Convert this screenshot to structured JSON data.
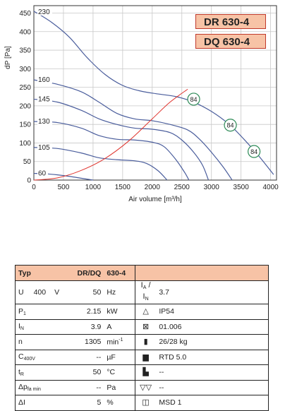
{
  "chart_data": {
    "type": "line",
    "xlabel": "Air volume [m³/h]",
    "ylabel": "dP [Pa]",
    "xlim": [
      0,
      4100
    ],
    "ylim": [
      0,
      470
    ],
    "xticks": [
      "0",
      "500",
      "1000",
      "1500",
      "2000",
      "2500",
      "3000",
      "3500",
      "4000"
    ],
    "yticks": [
      "0",
      "50",
      "100",
      "150",
      "200",
      "250",
      "300",
      "350",
      "400",
      "450"
    ],
    "series": [
      {
        "name": "230",
        "color": "#4a5d9c",
        "points": [
          [
            0,
            455
          ],
          [
            300,
            425
          ],
          [
            600,
            385
          ],
          [
            900,
            330
          ],
          [
            1200,
            285
          ],
          [
            1500,
            255
          ],
          [
            1800,
            240
          ],
          [
            2100,
            232
          ],
          [
            2400,
            225
          ],
          [
            2700,
            210
          ],
          [
            3000,
            185
          ],
          [
            3300,
            150
          ],
          [
            3550,
            110
          ],
          [
            3800,
            65
          ],
          [
            4050,
            15
          ]
        ]
      },
      {
        "name": "160",
        "color": "#4a5d9c",
        "points": [
          [
            0,
            270
          ],
          [
            400,
            258
          ],
          [
            800,
            238
          ],
          [
            1100,
            210
          ],
          [
            1400,
            180
          ],
          [
            1700,
            165
          ],
          [
            2000,
            160
          ],
          [
            2300,
            150
          ],
          [
            2600,
            135
          ],
          [
            2800,
            110
          ],
          [
            3000,
            75
          ],
          [
            3200,
            35
          ],
          [
            3350,
            0
          ]
        ]
      },
      {
        "name": "145",
        "color": "#4a5d9c",
        "points": [
          [
            0,
            218
          ],
          [
            400,
            210
          ],
          [
            800,
            188
          ],
          [
            1100,
            165
          ],
          [
            1400,
            150
          ],
          [
            1700,
            140
          ],
          [
            2000,
            137
          ],
          [
            2300,
            128
          ],
          [
            2500,
            108
          ],
          [
            2700,
            75
          ],
          [
            2850,
            40
          ],
          [
            2950,
            0
          ]
        ]
      },
      {
        "name": "130",
        "color": "#4a5d9c",
        "points": [
          [
            0,
            158
          ],
          [
            400,
            155
          ],
          [
            800,
            140
          ],
          [
            1100,
            120
          ],
          [
            1400,
            110
          ],
          [
            1700,
            108
          ],
          [
            2000,
            102
          ],
          [
            2200,
            90
          ],
          [
            2400,
            55
          ],
          [
            2550,
            20
          ],
          [
            2620,
            0
          ]
        ]
      },
      {
        "name": "105",
        "color": "#4a5d9c",
        "points": [
          [
            0,
            88
          ],
          [
            400,
            85
          ],
          [
            800,
            73
          ],
          [
            1100,
            60
          ],
          [
            1400,
            55
          ],
          [
            1700,
            52
          ],
          [
            1900,
            45
          ],
          [
            2100,
            25
          ],
          [
            2250,
            0
          ]
        ]
      },
      {
        "name": "60",
        "color": "#4a5d9c",
        "points": [
          [
            0,
            18
          ],
          [
            200,
            17
          ],
          [
            400,
            14
          ],
          [
            600,
            10
          ],
          [
            800,
            5
          ],
          [
            1000,
            0
          ]
        ]
      }
    ],
    "system_curve": {
      "color": "#e0342e",
      "points": [
        [
          0,
          0
        ],
        [
          400,
          6
        ],
        [
          800,
          26
        ],
        [
          1200,
          58
        ],
        [
          1600,
          105
        ],
        [
          2000,
          165
        ],
        [
          2300,
          210
        ],
        [
          2600,
          245
        ]
      ]
    },
    "markers": [
      {
        "label": "84",
        "x": 2700,
        "y": 218
      },
      {
        "label": "84",
        "x": 3320,
        "y": 148
      },
      {
        "label": "84",
        "x": 3720,
        "y": 77
      }
    ],
    "legend_boxes": [
      "DR 630-4",
      "DQ 630-4"
    ]
  },
  "table": {
    "header": {
      "c1": "Typ",
      "c2": "DR/DQ",
      "c3": "630-4"
    },
    "rows": [
      {
        "label": "U",
        "pre": "400",
        "unit1": "V",
        "value": "50",
        "unit": "Hz",
        "icon": "current-ratio-icon",
        "icon_text": "I A / I N",
        "right": "3.7"
      },
      {
        "label": "P",
        "sub": "1",
        "value": "2.15",
        "unit": "kW",
        "icon": "protection-icon",
        "icon_text": "",
        "right": "IP54"
      },
      {
        "label": "I",
        "sub": "N",
        "value": "3.9",
        "unit": "A",
        "icon": "wiring-diagram-icon",
        "icon_text": "",
        "right": "01.006"
      },
      {
        "label": "n",
        "value": "1305",
        "unit": "min",
        "unit_sup": "-1",
        "icon": "weight-icon",
        "icon_text": "",
        "right": "26/28 kg"
      },
      {
        "label": "C",
        "sub": "400V",
        "value": "--",
        "unit": "µF",
        "icon": "motor-protection-icon",
        "icon_text": "",
        "right": "RTD 5.0"
      },
      {
        "label": "t",
        "sub": "R",
        "value": "50",
        "unit": "°C",
        "icon": "thermal-switch-icon",
        "icon_text": "",
        "right": "--"
      },
      {
        "label": "Δp",
        "sub": "fa min",
        "value": "--",
        "unit": "Pa",
        "icon": "airflow-icon",
        "icon_text": "",
        "right": "--"
      },
      {
        "label": "ΔI",
        "value": "5",
        "unit": "%",
        "icon": "speed-controller-icon",
        "icon_text": "",
        "right": "MSD 1"
      }
    ]
  }
}
